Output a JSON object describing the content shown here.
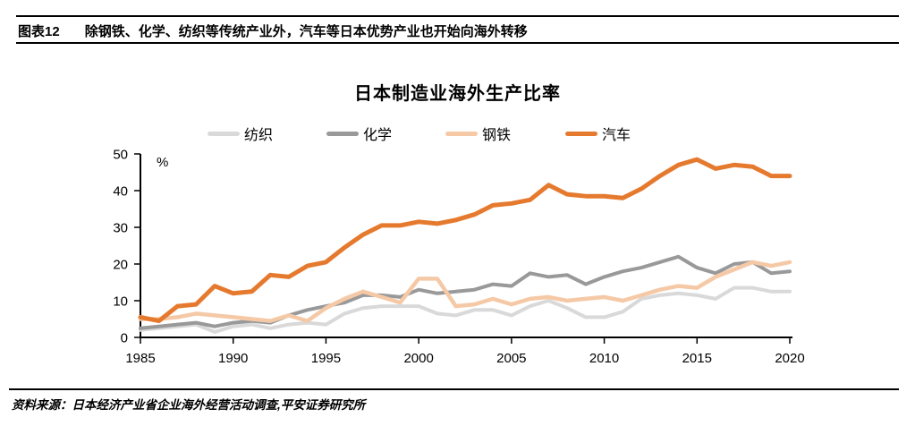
{
  "header": {
    "tag": "图表12",
    "title": "除钢铁、化学、纺织等传统产业外，汽车等日本优势产业也开始向海外转移"
  },
  "chart_data": {
    "type": "line",
    "title": "日本制造业海外生产比率",
    "unit_label": "%",
    "grid": false,
    "legend_position": "top",
    "ylim": [
      0,
      50
    ],
    "y_ticks": [
      0,
      10,
      20,
      30,
      40,
      50
    ],
    "x_ticks": [
      1985,
      1990,
      1995,
      2000,
      2005,
      2010,
      2015,
      2020
    ],
    "x": [
      1985,
      1986,
      1987,
      1988,
      1989,
      1990,
      1991,
      1992,
      1993,
      1994,
      1995,
      1996,
      1997,
      1998,
      1999,
      2000,
      2001,
      2002,
      2003,
      2004,
      2005,
      2006,
      2007,
      2008,
      2009,
      2010,
      2011,
      2012,
      2013,
      2014,
      2015,
      2016,
      2017,
      2018,
      2019,
      2020
    ],
    "series": [
      {
        "name": "纺织",
        "color": "#D9D9D9",
        "stroke_width": 4,
        "values": [
          2,
          2.5,
          3,
          3.5,
          1.5,
          3,
          3.5,
          2.5,
          3.5,
          4,
          3.5,
          6.5,
          8,
          8.5,
          8.5,
          8.5,
          6.5,
          6,
          7.5,
          7.5,
          6,
          8.5,
          10,
          8,
          5.5,
          5.5,
          7,
          10.5,
          11.5,
          12,
          11.5,
          10.5,
          13.5,
          13.5,
          12.5,
          12.5
        ]
      },
      {
        "name": "化学",
        "color": "#999999",
        "stroke_width": 4,
        "values": [
          2.5,
          3,
          3.5,
          4,
          3,
          4,
          4.5,
          4,
          6,
          7.5,
          8.5,
          9.5,
          11.5,
          11.5,
          11,
          13,
          12,
          12.5,
          13,
          14.5,
          14,
          17.5,
          16.5,
          17,
          14.5,
          16.5,
          18,
          19,
          20.5,
          22,
          19,
          17.5,
          20,
          20.5,
          17.5,
          18
        ]
      },
      {
        "name": "钢铁",
        "color": "#F5C9A6",
        "stroke_width": 4.5,
        "values": [
          5,
          5,
          5.5,
          6.5,
          6,
          5.5,
          5,
          4.5,
          6,
          4.5,
          8,
          10.5,
          12.5,
          11,
          9.5,
          16,
          16,
          8.5,
          9,
          10.5,
          9,
          10.5,
          11,
          10,
          10.5,
          11,
          10,
          11.5,
          13,
          14,
          13.5,
          16.5,
          18.5,
          20.5,
          19.5,
          20.5
        ]
      },
      {
        "name": "汽车",
        "color": "#E57A2F",
        "stroke_width": 5,
        "values": [
          5.5,
          4.5,
          8.5,
          9,
          14,
          12,
          12.5,
          17,
          16.5,
          19.5,
          20.5,
          24.5,
          28,
          30.5,
          30.5,
          31.5,
          31,
          32,
          33.5,
          36,
          36.5,
          37.5,
          41.5,
          39,
          38.5,
          38.5,
          38,
          40.5,
          44,
          47,
          48.5,
          46,
          47,
          46.5,
          44,
          44
        ]
      }
    ]
  },
  "footer": {
    "source": "资料来源：日本经济产业省企业海外经营活动调查,平安证券研究所"
  }
}
